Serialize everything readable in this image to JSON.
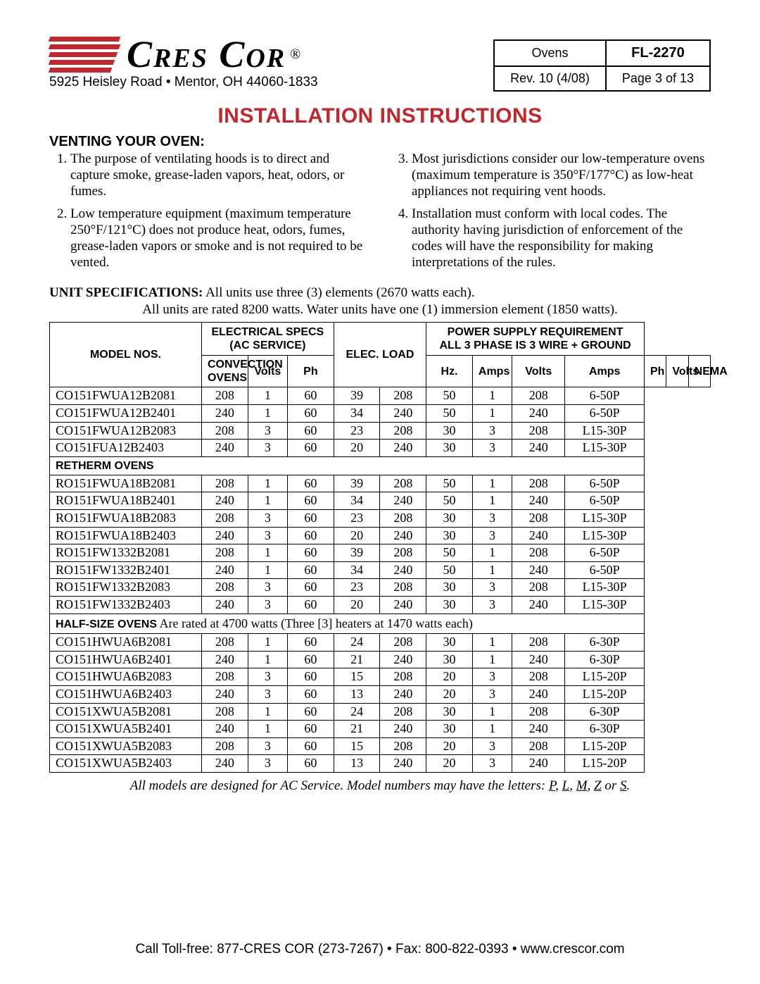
{
  "brand": "Cres Cor",
  "address": "5925 Heisley Road • Mentor, OH 44060-1833",
  "info": {
    "cat": "Ovens",
    "doc": "FL-2270",
    "rev": "Rev. 10 (4/08)",
    "page": "Page 3 of 13"
  },
  "title": "INSTALLATION INSTRUCTIONS",
  "venting_heading": "VENTING YOUR OVEN:",
  "venting": {
    "p1": "The purpose of ventilating hoods is to direct and capture smoke, grease-laden vapors, heat, odors, or fumes.",
    "p2": "Low temperature equipment (maximum temperature 250°F/121°C) does not produce heat, odors, fumes, grease-laden vapors or smoke and is not required to be vented.",
    "p3": "Most jurisdictions consider our low-temperature ovens (maximum temperature is 350°F/177°C) as low-heat appliances not requiring vent hoods.",
    "p4": "Installation must conform with local codes. The authority having jurisdiction of enforcement of the codes will have the responsibility for making interpretations of the rules."
  },
  "unit_spec_label": "UNIT SPECIFICATIONS:",
  "unit_spec_text": " All units use three (3) elements (2670 watts each).",
  "unit_note": "All units are rated 8200 watts. Water units have one (1) immersion element (1850 watts).",
  "headers": {
    "model": "MODEL NOS.",
    "espec": "ELECTRICAL SPECS",
    "espec2": "(AC SERVICE)",
    "eload": "ELEC. LOAD",
    "psup": "POWER SUPPLY REQUIREMENT",
    "psup2": "ALL 3 PHASE IS 3 WIRE + GROUND",
    "volts": "Volts",
    "ph": "Ph",
    "hz": "Hz.",
    "amps": "Amps",
    "nema": "NEMA"
  },
  "sections": {
    "convection": "CONVECTION OVENS",
    "retherm": "RETHERM OVENS",
    "half_lead": "HALF-SIZE OVENS",
    "half_rest": " Are rated at 4700 watts (Three [3] heaters at 1470 watts each)"
  },
  "rows_convection": [
    {
      "m": "CO151FWUA12B2081",
      "v1": "208",
      "ph1": "1",
      "hz": "60",
      "a1": "39",
      "v2": "208",
      "a2": "50",
      "ph2": "1",
      "v3": "208",
      "n": "6-50P"
    },
    {
      "m": "CO151FWUA12B2401",
      "v1": "240",
      "ph1": "1",
      "hz": "60",
      "a1": "34",
      "v2": "240",
      "a2": "50",
      "ph2": "1",
      "v3": "240",
      "n": "6-50P"
    },
    {
      "m": "CO151FWUA12B2083",
      "v1": "208",
      "ph1": "3",
      "hz": "60",
      "a1": "23",
      "v2": "208",
      "a2": "30",
      "ph2": "3",
      "v3": "208",
      "n": "L15-30P"
    },
    {
      "m": "CO151FUA12B2403",
      "v1": "240",
      "ph1": "3",
      "hz": "60",
      "a1": "20",
      "v2": "240",
      "a2": "30",
      "ph2": "3",
      "v3": "240",
      "n": "L15-30P"
    }
  ],
  "rows_retherm": [
    {
      "m": "RO151FWUA18B2081",
      "v1": "208",
      "ph1": "1",
      "hz": "60",
      "a1": "39",
      "v2": "208",
      "a2": "50",
      "ph2": "1",
      "v3": "208",
      "n": "6-50P"
    },
    {
      "m": "RO151FWUA18B2401",
      "v1": "240",
      "ph1": "1",
      "hz": "60",
      "a1": "34",
      "v2": "240",
      "a2": "50",
      "ph2": "1",
      "v3": "240",
      "n": "6-50P"
    },
    {
      "m": "RO151FWUA18B2083",
      "v1": "208",
      "ph1": "3",
      "hz": "60",
      "a1": "23",
      "v2": "208",
      "a2": "30",
      "ph2": "3",
      "v3": "208",
      "n": "L15-30P"
    },
    {
      "m": "RO151FWUA18B2403",
      "v1": "240",
      "ph1": "3",
      "hz": "60",
      "a1": "20",
      "v2": "240",
      "a2": "30",
      "ph2": "3",
      "v3": "240",
      "n": "L15-30P"
    },
    {
      "m": "RO151FW1332B2081",
      "v1": "208",
      "ph1": "1",
      "hz": "60",
      "a1": "39",
      "v2": "208",
      "a2": "50",
      "ph2": "1",
      "v3": "208",
      "n": "6-50P"
    },
    {
      "m": "RO151FW1332B2401",
      "v1": "240",
      "ph1": "1",
      "hz": "60",
      "a1": "34",
      "v2": "240",
      "a2": "50",
      "ph2": "1",
      "v3": "240",
      "n": "6-50P"
    },
    {
      "m": "RO151FW1332B2083",
      "v1": "208",
      "ph1": "3",
      "hz": "60",
      "a1": "23",
      "v2": "208",
      "a2": "30",
      "ph2": "3",
      "v3": "208",
      "n": "L15-30P"
    },
    {
      "m": "RO151FW1332B2403",
      "v1": "240",
      "ph1": "3",
      "hz": "60",
      "a1": "20",
      "v2": "240",
      "a2": "30",
      "ph2": "3",
      "v3": "240",
      "n": "L15-30P"
    }
  ],
  "rows_half": [
    {
      "m": "CO151HWUA6B2081",
      "v1": "208",
      "ph1": "1",
      "hz": "60",
      "a1": "24",
      "v2": "208",
      "a2": "30",
      "ph2": "1",
      "v3": "208",
      "n": "6-30P"
    },
    {
      "m": "CO151HWUA6B2401",
      "v1": "240",
      "ph1": "1",
      "hz": "60",
      "a1": "21",
      "v2": "240",
      "a2": "30",
      "ph2": "1",
      "v3": "240",
      "n": "6-30P"
    },
    {
      "m": "CO151HWUA6B2083",
      "v1": "208",
      "ph1": "3",
      "hz": "60",
      "a1": "15",
      "v2": "208",
      "a2": "20",
      "ph2": "3",
      "v3": "208",
      "n": "L15-20P"
    },
    {
      "m": "CO151HWUA6B2403",
      "v1": "240",
      "ph1": "3",
      "hz": "60",
      "a1": "13",
      "v2": "240",
      "a2": "20",
      "ph2": "3",
      "v3": "240",
      "n": "L15-20P"
    },
    {
      "m": "CO151XWUA5B2081",
      "v1": "208",
      "ph1": "1",
      "hz": "60",
      "a1": "24",
      "v2": "208",
      "a2": "30",
      "ph2": "1",
      "v3": "208",
      "n": "6-30P"
    },
    {
      "m": "CO151XWUA5B2401",
      "v1": "240",
      "ph1": "1",
      "hz": "60",
      "a1": "21",
      "v2": "240",
      "a2": "30",
      "ph2": "1",
      "v3": "240",
      "n": "6-30P"
    },
    {
      "m": "CO151XWUA5B2083",
      "v1": "208",
      "ph1": "3",
      "hz": "60",
      "a1": "15",
      "v2": "208",
      "a2": "20",
      "ph2": "3",
      "v3": "208",
      "n": "L15-20P"
    },
    {
      "m": "CO151XWUA5B2403",
      "v1": "240",
      "ph1": "3",
      "hz": "60",
      "a1": "13",
      "v2": "240",
      "a2": "20",
      "ph2": "3",
      "v3": "240",
      "n": "L15-20P"
    }
  ],
  "footnote_pre": "All models are designed for AC Service. Model numbers may have the letters: ",
  "footnote_P": "P",
  "footnote_c1": ", ",
  "footnote_L": "L",
  "footnote_c2": ", ",
  "footnote_M": "M",
  "footnote_c3": ", ",
  "footnote_Z": "Z",
  "footnote_or": " or ",
  "footnote_S": "S",
  "footnote_dot": ".",
  "footer": "Call Toll-free: 877-CRES COR (273-7267) • Fax: 800-822-0393 • www.crescor.com"
}
